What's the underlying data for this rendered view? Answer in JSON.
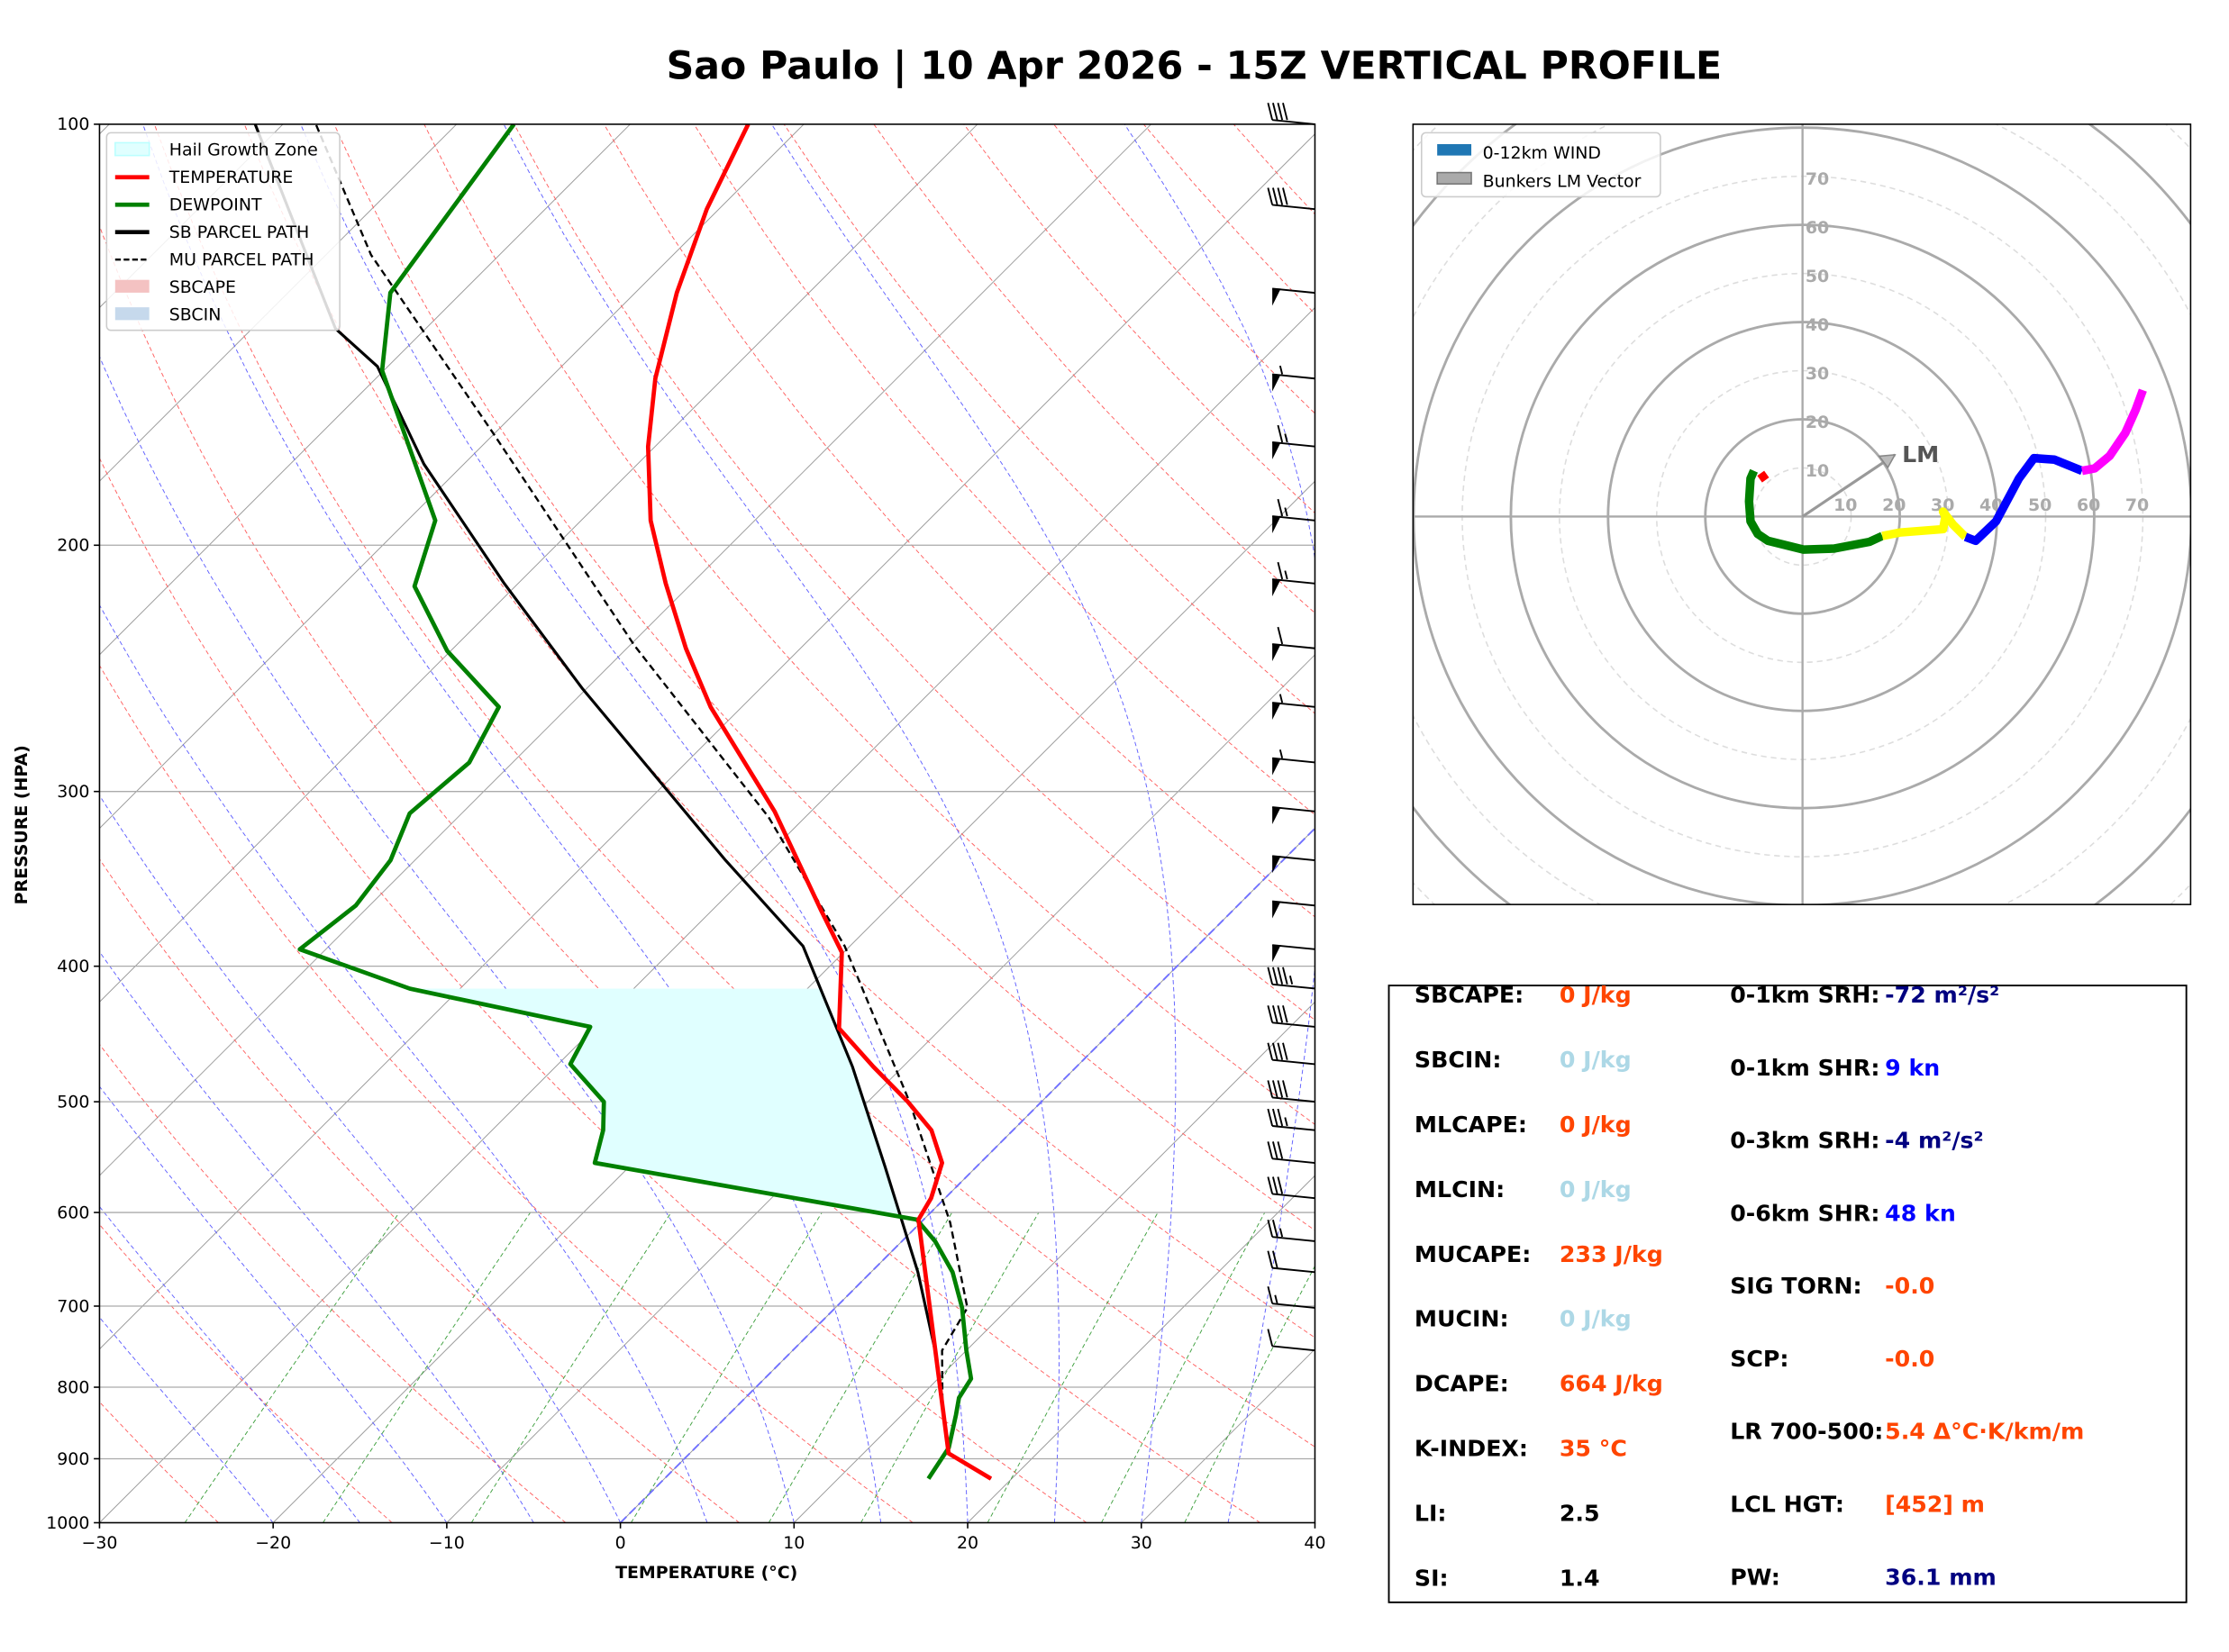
{
  "title": "Sao Paulo | 10 Apr 2026 - 15Z VERTICAL PROFILE",
  "chart_data": [
    {
      "type": "line",
      "subtype": "skew-t log-p",
      "xlabel": "TEMPERATURE (°C)",
      "ylabel": "PRESSURE (HPA)",
      "xlim": [
        -30,
        40
      ],
      "ylim": [
        1000,
        100
      ],
      "y_scale": "log",
      "x_ticks": [
        -30,
        -20,
        -10,
        0,
        10,
        20,
        30,
        40
      ],
      "x_tick_labels": [
        "−30",
        "−20",
        "−10",
        "0",
        "10",
        "20",
        "30",
        "40"
      ],
      "y_ticks": [
        100,
        200,
        300,
        400,
        500,
        600,
        700,
        800,
        900,
        1000
      ],
      "grid": true,
      "legend_placement": "top-left",
      "legend": [
        "Hail Growth Zone",
        "TEMPERATURE",
        "DEWPOINT",
        "SB PARCEL PATH",
        "MU PARCEL PATH",
        "SBCAPE",
        "SBCIN"
      ],
      "colors": {
        "temperature": "#ff0000",
        "dewpoint": "#008000",
        "sb_parcel": "#000000",
        "mu_parcel": "#000000",
        "hail": "#e0ffff",
        "sbcape": "#f4c2c2",
        "sbcin": "#c6d9ec"
      },
      "hail_growth_zone_hpa": [
        415,
        607
      ],
      "series": [
        {
          "name": "TEMPERATURE",
          "p": [
            930,
            892,
            607,
            586,
            553,
            524,
            500,
            472,
            443,
            391,
            365,
            310,
            261,
            237,
            213,
            192,
            170,
            152,
            132,
            115,
            100
          ],
          "t": [
            18.8,
            14.9,
            -0.3,
            -0.8,
            -2.2,
            -4.7,
            -7.7,
            -11.7,
            -15.9,
            -20.1,
            -23.7,
            -32.1,
            -41.8,
            -46.6,
            -51.5,
            -56.0,
            -60.4,
            -63.9,
            -67.6,
            -70.7,
            -73.2
          ]
        },
        {
          "name": "DEWPOINT",
          "p": [
            930,
            884,
            837,
            814,
            789,
            753,
            702,
            662,
            629,
            607,
            553,
            524,
            500,
            470,
            442,
            415,
            389,
            362,
            336,
            311,
            286,
            261,
            238,
            214,
            192,
            150,
            132,
            100
          ],
          "t": [
            15.2,
            14.6,
            13.1,
            12.3,
            11.9,
            10.0,
            7.3,
            4.7,
            1.9,
            -0.4,
            -22.2,
            -23.6,
            -25.2,
            -29.3,
            -30.3,
            -42.9,
            -51.5,
            -50.8,
            -51.4,
            -53.0,
            -52.5,
            -54.0,
            -60.2,
            -65.8,
            -68.4,
            -80.1,
            -84.1,
            -86.7
          ]
        },
        {
          "name": "SB PARCEL PATH",
          "p": [
            930,
            892,
            827,
            753,
            662,
            556,
            472,
            387,
            336,
            253,
            213,
            175,
            149,
            140,
            100
          ],
          "t": [
            18.8,
            14.9,
            11.9,
            8.2,
            2.7,
            -5.3,
            -12.9,
            -22.7,
            -32.1,
            -50.3,
            -60.8,
            -72.3,
            -80.6,
            -85.2,
            -101.6
          ]
        },
        {
          "name": "MU PARCEL PATH",
          "p": [
            930,
            892,
            827,
            753,
            702,
            610,
            500,
            387,
            313,
            236,
            166,
            124,
            100
          ],
          "t": [
            18.8,
            14.9,
            11.9,
            8.6,
            7.6,
            1.7,
            -7.6,
            -20.3,
            -32.1,
            -49.7,
            -70.2,
            -87.4,
            -98.1
          ]
        }
      ],
      "wind_barbs": [
        {
          "p": 100,
          "kt": 40
        },
        {
          "p": 115,
          "kt": 40
        },
        {
          "p": 132,
          "kt": 50
        },
        {
          "p": 152,
          "kt": 55
        },
        {
          "p": 170,
          "kt": 65
        },
        {
          "p": 192,
          "kt": 65
        },
        {
          "p": 213,
          "kt": 65
        },
        {
          "p": 237,
          "kt": 60
        },
        {
          "p": 261,
          "kt": 55
        },
        {
          "p": 286,
          "kt": 55
        },
        {
          "p": 310,
          "kt": 50
        },
        {
          "p": 336,
          "kt": 50
        },
        {
          "p": 362,
          "kt": 50
        },
        {
          "p": 389,
          "kt": 50
        },
        {
          "p": 415,
          "kt": 45
        },
        {
          "p": 442,
          "kt": 40
        },
        {
          "p": 470,
          "kt": 40
        },
        {
          "p": 500,
          "kt": 40
        },
        {
          "p": 524,
          "kt": 35
        },
        {
          "p": 553,
          "kt": 30
        },
        {
          "p": 586,
          "kt": 30
        },
        {
          "p": 629,
          "kt": 25
        },
        {
          "p": 662,
          "kt": 20
        },
        {
          "p": 702,
          "kt": 15
        },
        {
          "p": 753,
          "kt": 10
        }
      ]
    },
    {
      "type": "line",
      "subtype": "hodograph",
      "legend": [
        "0-12km WIND",
        "Bunkers LM Vector"
      ],
      "legend_placement": "top-left",
      "ring_labels": [
        "10",
        "20",
        "30",
        "40",
        "50",
        "60",
        "70"
      ],
      "lm_label": "LM",
      "lm_vector_kt": [
        19,
        12.7
      ],
      "colors": {
        "wind_legend": "#1f77b4",
        "lm": "#999999"
      },
      "segments": [
        {
          "color": "#ff0000",
          "u": [
            -7.6,
            -8.6
          ],
          "v": [
            7.5,
            8.9
          ]
        },
        {
          "color": "#008000",
          "u": [
            -10,
            -10.7,
            -11,
            -10.7,
            -9.2,
            -7.1,
            0.2,
            6.5,
            13.8,
            16.4
          ],
          "v": [
            9.4,
            7.8,
            3.1,
            -1,
            -3.6,
            -5,
            -6.8,
            -6.6,
            -5.2,
            -4
          ]
        },
        {
          "color": "#ffff00",
          "u": [
            16.4,
            20,
            28.9,
            29.4,
            28.9,
            30.9,
            33.5
          ],
          "v": [
            -4,
            -3.3,
            -2.6,
            0,
            1,
            -1.6,
            -4.2
          ]
        },
        {
          "color": "#0000ff",
          "u": [
            33.5,
            35.6,
            39.8,
            44.5,
            47.6,
            51.8,
            57.5
          ],
          "v": [
            -4.2,
            -5,
            -1,
            7.8,
            12,
            11.7,
            9.4
          ]
        },
        {
          "color": "#ff00ff",
          "u": [
            57.5,
            60.1,
            63.2,
            66.4,
            68.5,
            70
          ],
          "v": [
            9.4,
            9.9,
            12.5,
            17.2,
            21.9,
            26
          ]
        }
      ]
    }
  ],
  "stats": {
    "left": [
      {
        "label": "SBCAPE:",
        "value": "0 J/kg",
        "color": "#ff4500"
      },
      {
        "label": "SBCIN:",
        "value": "0 J/kg",
        "color": "#add8e6"
      },
      {
        "label": "MLCAPE:",
        "value": "0 J/kg",
        "color": "#ff4500"
      },
      {
        "label": "MLCIN:",
        "value": "0 J/kg",
        "color": "#add8e6"
      },
      {
        "label": "MUCAPE:",
        "value": "233 J/kg",
        "color": "#ff4500"
      },
      {
        "label": "MUCIN:",
        "value": "0 J/kg",
        "color": "#add8e6"
      },
      {
        "label": "DCAPE:",
        "value": "664 J/kg",
        "color": "#ff4500"
      },
      {
        "label": "K-INDEX:",
        "value": "35 °C",
        "color": "#ff4500"
      },
      {
        "label": "LI:",
        "value": "2.5",
        "color": "#000000"
      },
      {
        "label": "SI:",
        "value": "1.4",
        "color": "#000000"
      }
    ],
    "right": [
      {
        "label": "0-1km SRH:",
        "value": "-72 m²/s²",
        "color": "#000080"
      },
      {
        "label": "0-1km SHR:",
        "value": "9 kn",
        "color": "#0000ff"
      },
      {
        "label": "0-3km SRH:",
        "value": "-4 m²/s²",
        "color": "#000080"
      },
      {
        "label": "0-6km SHR:",
        "value": "48 kn",
        "color": "#0000ff"
      },
      {
        "label": "SIG TORN:",
        "value": "-0.0",
        "color": "#ff4500"
      },
      {
        "label": "SCP:",
        "value": "-0.0",
        "color": "#ff4500"
      },
      {
        "label": "LR 700-500:",
        "value": "5.4 Δ°C·K/km/m",
        "color": "#ff4500"
      },
      {
        "label": "LCL HGT:",
        "value": "[452] m",
        "color": "#ff4500"
      },
      {
        "label": "PW:",
        "value": "36.1 mm",
        "color": "#000080"
      }
    ]
  }
}
